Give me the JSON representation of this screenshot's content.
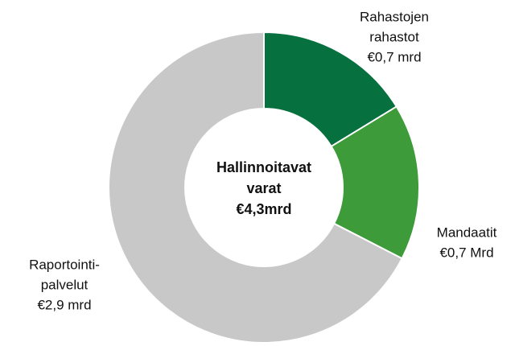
{
  "chart_data": {
    "type": "donut",
    "categories": [
      [
        "Rahastojen",
        "rahastot"
      ],
      [
        "Mandaatit"
      ],
      [
        "Raportointi-",
        "palvelut"
      ]
    ],
    "values": [
      0.7,
      0.7,
      2.9
    ],
    "value_labels": [
      "€0,7 mrd",
      "€0,7 Mrd",
      "€2,9 mrd"
    ],
    "colors": [
      "#07703f",
      "#3d9b3a",
      "#c8c8c8"
    ],
    "center_text": [
      "Hallinnoitavat",
      "varat",
      "€4,3mrd"
    ]
  }
}
